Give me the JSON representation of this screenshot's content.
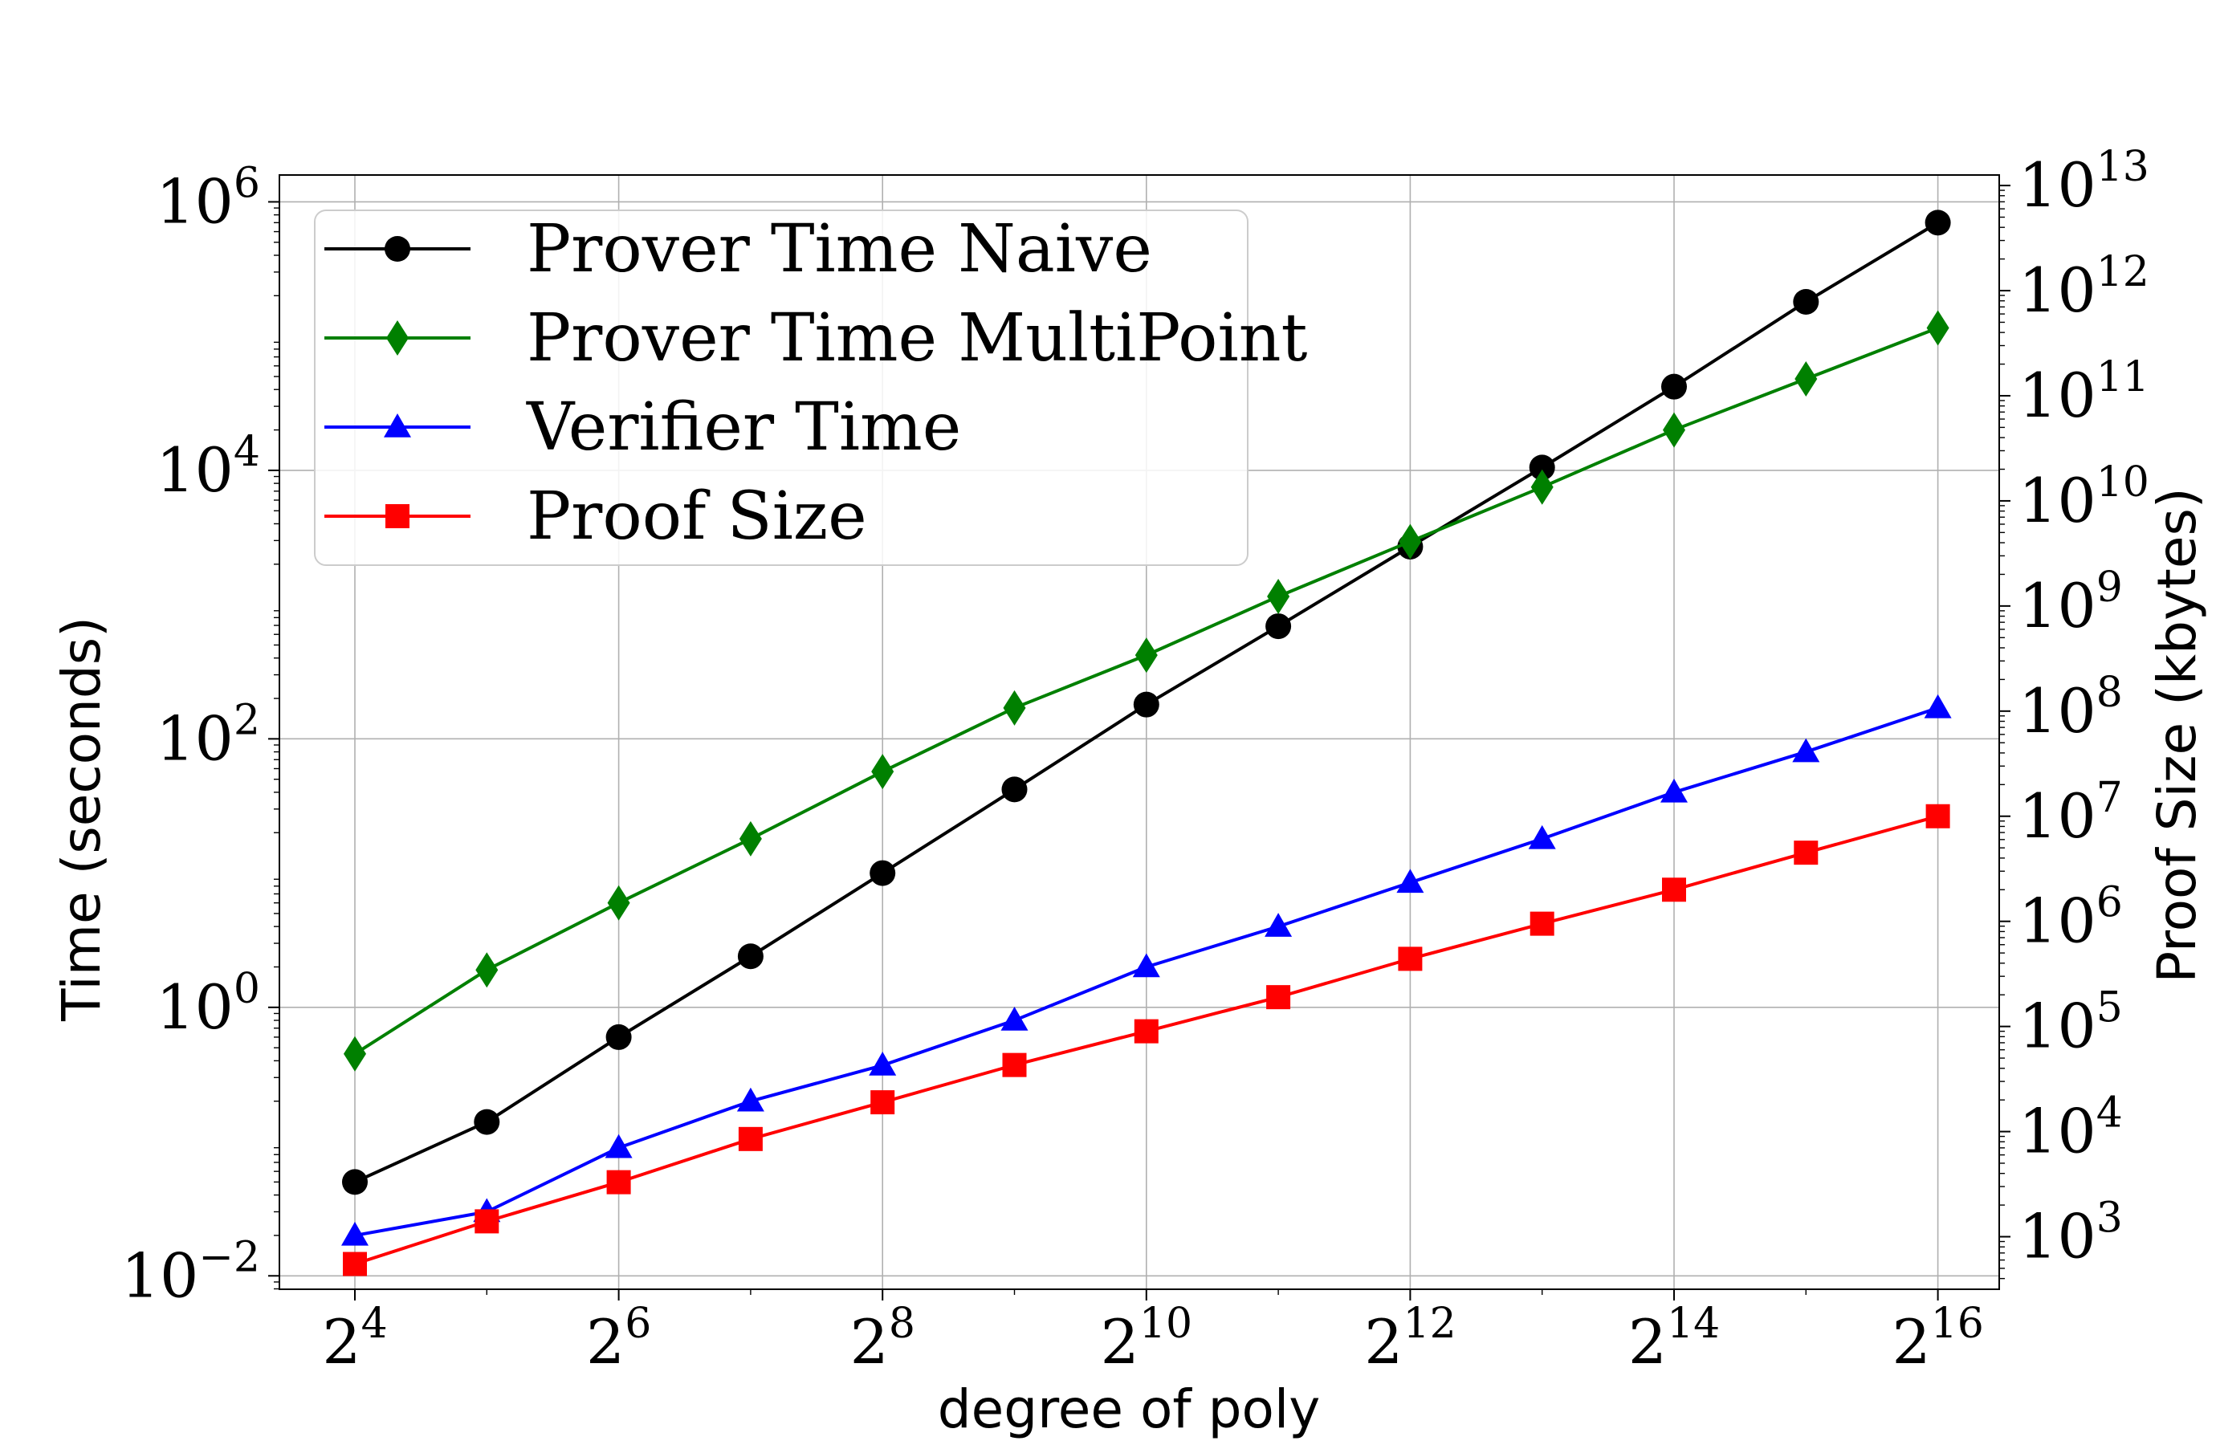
{
  "chart_data": {
    "type": "line",
    "xlabel": "degree of poly",
    "ylabel_left": "Time (seconds)",
    "ylabel_right": "Proof Size (kbytes)",
    "x_scale": "log2",
    "y_scale": "log10",
    "x_exponents": [
      4,
      5,
      6,
      7,
      8,
      9,
      10,
      11,
      12,
      13,
      14,
      15,
      16
    ],
    "x_tick_exponents": [
      4,
      6,
      8,
      10,
      12,
      14,
      16
    ],
    "x_tick_labels": [
      {
        "base": "2",
        "exp": "4"
      },
      {
        "base": "2",
        "exp": "6"
      },
      {
        "base": "2",
        "exp": "8"
      },
      {
        "base": "2",
        "exp": "10"
      },
      {
        "base": "2",
        "exp": "12"
      },
      {
        "base": "2",
        "exp": "14"
      },
      {
        "base": "2",
        "exp": "16"
      }
    ],
    "y_left_range_log10": [
      -2.1,
      6.2
    ],
    "y_left_tick_exponents": [
      -2,
      0,
      2,
      4,
      6
    ],
    "y_left_tick_labels": [
      {
        "base": "10",
        "exp": "−2"
      },
      {
        "base": "10",
        "exp": "0"
      },
      {
        "base": "10",
        "exp": "2"
      },
      {
        "base": "10",
        "exp": "4"
      },
      {
        "base": "10",
        "exp": "6"
      }
    ],
    "y_right_range_log10": [
      2.5,
      13.1
    ],
    "y_right_tick_exponents": [
      3,
      4,
      5,
      6,
      7,
      8,
      9,
      10,
      11,
      12,
      13
    ],
    "y_right_tick_labels": [
      {
        "base": "10",
        "exp": "3"
      },
      {
        "base": "10",
        "exp": "4"
      },
      {
        "base": "10",
        "exp": "5"
      },
      {
        "base": "10",
        "exp": "6"
      },
      {
        "base": "10",
        "exp": "7"
      },
      {
        "base": "10",
        "exp": "8"
      },
      {
        "base": "10",
        "exp": "9"
      },
      {
        "base": "10",
        "exp": "10"
      },
      {
        "base": "10",
        "exp": "11"
      },
      {
        "base": "10",
        "exp": "12"
      },
      {
        "base": "10",
        "exp": "13"
      }
    ],
    "grid": true,
    "legend_position": "top-left",
    "series": [
      {
        "name": "Prover Time Naive",
        "color": "#000000",
        "marker": "circle",
        "axis": "left",
        "values": [
          0.05,
          0.14,
          0.6,
          2.4,
          10,
          42,
          180,
          690,
          2700,
          10500,
          42000,
          180000,
          700000
        ]
      },
      {
        "name": "Prover Time MultiPoint",
        "color": "#008000",
        "marker": "diamond",
        "axis": "left",
        "values": [
          0.45,
          1.9,
          6.0,
          18,
          57,
          170,
          420,
          1150,
          2950,
          7500,
          20000,
          48000,
          115000
        ]
      },
      {
        "name": "Verifier Time",
        "color": "#0000ff",
        "marker": "triangle",
        "axis": "left",
        "values": [
          0.02,
          0.03,
          0.09,
          0.2,
          0.37,
          0.8,
          2.0,
          4.0,
          8.5,
          18,
          40,
          80,
          170
        ]
      },
      {
        "name": "Proof Size",
        "color": "#ff0000",
        "marker": "square",
        "axis": "right",
        "values": [
          550,
          1400,
          3300,
          8500,
          19000,
          43000,
          90000,
          190000,
          440000,
          950000,
          2000000,
          4500000,
          10000000
        ]
      }
    ]
  }
}
